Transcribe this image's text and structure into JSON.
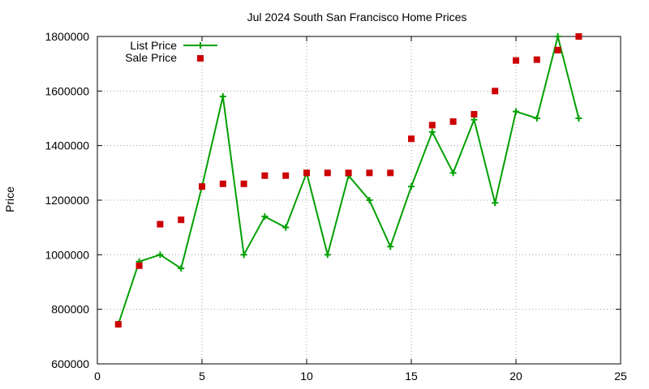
{
  "chart_data": {
    "type": "line",
    "title": "Jul 2024 South San Francisco Home Prices",
    "xlabel": "",
    "ylabel": "Price",
    "xlim": [
      0,
      25
    ],
    "ylim": [
      600000,
      1800000
    ],
    "xticks": [
      "0",
      "5",
      "10",
      "15",
      "20",
      "25"
    ],
    "yticks": [
      "600000",
      "800000",
      "1000000",
      "1200000",
      "1400000",
      "1600000",
      "1800000"
    ],
    "grid": true,
    "legend_position": "top-left",
    "series": [
      {
        "name": "List Price",
        "style": "line-with-plus-markers",
        "color": "#00a000",
        "x": [
          1,
          2,
          3,
          4,
          5,
          6,
          7,
          8,
          9,
          10,
          11,
          12,
          13,
          14,
          15,
          16,
          17,
          18,
          19,
          20,
          21,
          22,
          23
        ],
        "values": [
          745000,
          975000,
          1000000,
          950000,
          1250000,
          1580000,
          1000000,
          1140000,
          1100000,
          1300000,
          1000000,
          1290000,
          1200000,
          1030000,
          1250000,
          1450000,
          1300000,
          1495000,
          1190000,
          1525000,
          1500000,
          1800000,
          1500000
        ]
      },
      {
        "name": "Sale Price",
        "style": "square-markers",
        "color": "#cc0000",
        "x": [
          1,
          2,
          3,
          4,
          5,
          6,
          7,
          8,
          9,
          10,
          11,
          12,
          13,
          14,
          15,
          16,
          17,
          18,
          19,
          20,
          21,
          22,
          23
        ],
        "values": [
          745000,
          960000,
          1112000,
          1128000,
          1250000,
          1260000,
          1260000,
          1290000,
          1290000,
          1300000,
          1300000,
          1300000,
          1300000,
          1300000,
          1425000,
          1475000,
          1488000,
          1515000,
          1600000,
          1712000,
          1715000,
          1750000,
          1800000
        ]
      }
    ]
  }
}
